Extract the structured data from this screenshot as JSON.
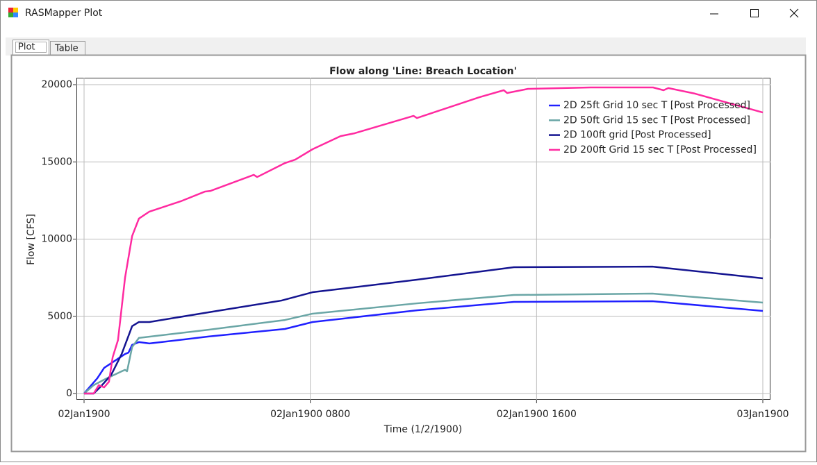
{
  "window": {
    "title": "RASMapper Plot"
  },
  "tabs": [
    "Plot",
    "Table"
  ],
  "chart_data": {
    "type": "line",
    "title": "Flow along 'Line: Breach Location'",
    "x_label": "Time (1/2/1900)",
    "y_label": "Flow [CFS]",
    "xlim": [
      0,
      24
    ],
    "ylim": [
      0,
      20000
    ],
    "xticks": [
      {
        "value": 0,
        "label": "02Jan1900"
      },
      {
        "value": 8,
        "label": "02Jan1900 0800"
      },
      {
        "value": 16,
        "label": "02Jan1900 1600"
      },
      {
        "value": 24,
        "label": "03Jan1900"
      }
    ],
    "yticks": [
      0,
      5000,
      10000,
      15000,
      20000
    ],
    "grid": true,
    "legend": "upper right",
    "series": [
      {
        "name": "2D 25ft Grid 10 sec T [Post Processed]",
        "color": "#2020ff",
        "x": [
          0,
          0.47,
          0.71,
          1.08,
          1.45,
          1.57,
          1.7,
          1.94,
          2.31,
          4.4,
          7.1,
          8.08,
          11.77,
          15.2,
          20.1,
          24
        ],
        "values": [
          0,
          990,
          1660,
          2110,
          2560,
          2650,
          3150,
          3330,
          3240,
          3690,
          4180,
          4630,
          5390,
          5930,
          5980,
          5350
        ]
      },
      {
        "name": "2D 50ft Grid 15 sec T [Post Processed]",
        "color": "#6aa6a6",
        "x": [
          0,
          0.34,
          0.71,
          1.33,
          1.45,
          1.52,
          1.7,
          1.94,
          4.4,
          7.1,
          8.08,
          11.77,
          15.2,
          20.1,
          24
        ],
        "values": [
          0,
          540,
          900,
          1440,
          1530,
          1440,
          3010,
          3600,
          4130,
          4760,
          5170,
          5840,
          6380,
          6470,
          5890
        ]
      },
      {
        "name": "2D 100ft grid [Post Processed]",
        "color": "#141490",
        "x": [
          0,
          0.34,
          0.59,
          0.96,
          1.33,
          1.7,
          1.94,
          2.31,
          4.4,
          6.98,
          8.08,
          11.77,
          15.2,
          20.1,
          24
        ],
        "values": [
          0,
          0,
          450,
          1210,
          2560,
          4360,
          4630,
          4630,
          5260,
          6020,
          6560,
          7370,
          8180,
          8220,
          7460
        ]
      },
      {
        "name": "2D 200ft Grid 15 sec T [Post Processed]",
        "color": "#ff2aa0",
        "x": [
          0,
          0.34,
          0.52,
          0.71,
          0.88,
          1.01,
          1.2,
          1.45,
          1.7,
          1.94,
          2.31,
          3.42,
          4.28,
          4.47,
          6.0,
          6.12,
          7.1,
          7.47,
          8.08,
          9.07,
          9.56,
          11.65,
          11.77,
          13.98,
          14.84,
          14.96,
          15.7,
          17.91,
          20.12,
          20.49,
          20.66,
          21.6,
          24
        ],
        "values": [
          0,
          0,
          540,
          400,
          760,
          2340,
          3460,
          7510,
          10200,
          11330,
          11780,
          12450,
          13080,
          13120,
          14160,
          14020,
          14920,
          15150,
          15820,
          16670,
          16850,
          17980,
          17840,
          19190,
          19640,
          19460,
          19730,
          19820,
          19820,
          19640,
          19780,
          19420,
          18200
        ]
      }
    ]
  }
}
